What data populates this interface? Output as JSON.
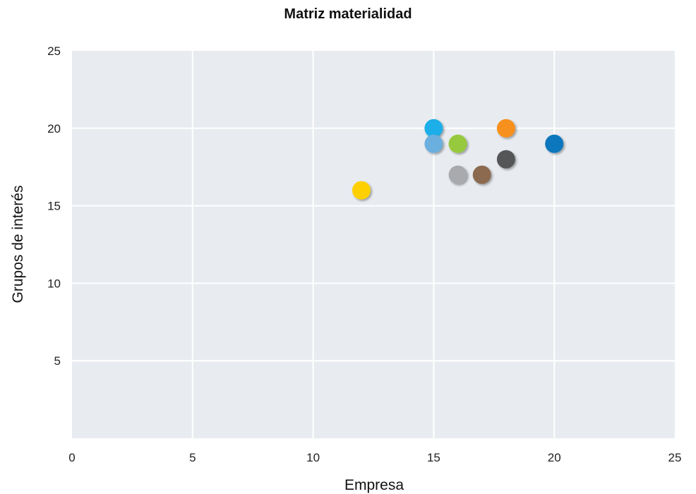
{
  "chart_data": {
    "type": "scatter",
    "title": "Matriz materialidad",
    "xlabel": "Empresa",
    "ylabel": "Grupos de interés",
    "xlim": [
      0,
      25
    ],
    "ylim": [
      0,
      25
    ],
    "x_ticks": [
      0,
      5,
      10,
      15,
      20,
      25
    ],
    "y_ticks": [
      5,
      10,
      15,
      20,
      25
    ],
    "grid": true,
    "legend": "none",
    "plot_background": "#e8ecf0",
    "grid_color": "#ffffff",
    "points": [
      {
        "x": 15,
        "y": 20,
        "color": "#1aaee8"
      },
      {
        "x": 18,
        "y": 20,
        "color": "#f7901e"
      },
      {
        "x": 20,
        "y": 19,
        "color": "#0a77bd"
      },
      {
        "x": 15,
        "y": 19,
        "color": "#6aafde"
      },
      {
        "x": 16,
        "y": 19,
        "color": "#96c93d"
      },
      {
        "x": 18,
        "y": 18,
        "color": "#555759"
      },
      {
        "x": 16,
        "y": 17,
        "color": "#a8aaad"
      },
      {
        "x": 17,
        "y": 17,
        "color": "#8b6a4f"
      },
      {
        "x": 12,
        "y": 16,
        "color": "#ffd000"
      }
    ]
  }
}
